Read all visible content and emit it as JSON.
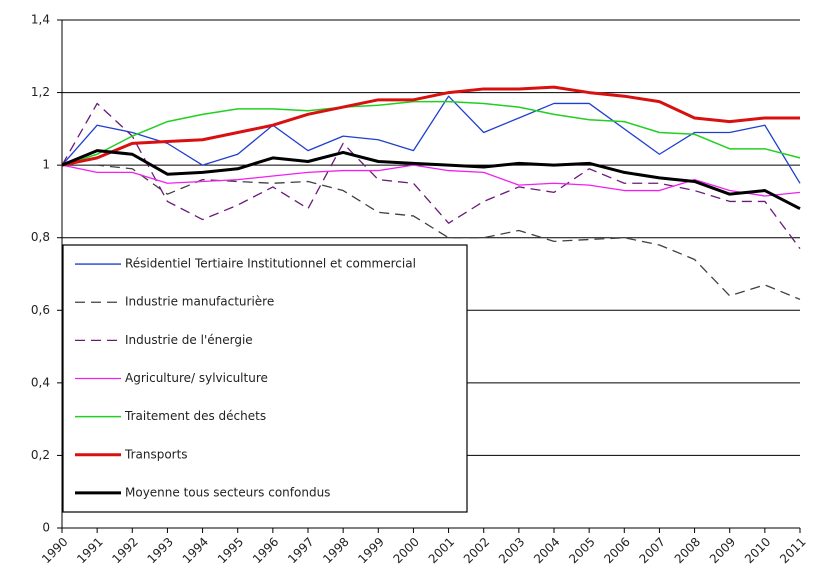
{
  "chart_data": {
    "type": "line",
    "categories": [
      "1990",
      "1991",
      "1992",
      "1993",
      "1994",
      "1995",
      "1996",
      "1997",
      "1998",
      "1999",
      "2000",
      "2001",
      "2002",
      "2003",
      "2004",
      "2005",
      "2006",
      "2007",
      "2008",
      "2009",
      "2010",
      "2011"
    ],
    "ylim": [
      0,
      1.4
    ],
    "yticks": [
      0,
      {
        "value": 0.2,
        "label": "0,2"
      },
      {
        "value": 0.4,
        "label": "0,4"
      },
      {
        "value": 0.6,
        "label": "0,6"
      },
      {
        "value": 0.8,
        "label": "0,8"
      },
      1,
      {
        "value": 1.2,
        "label": "1,2"
      },
      {
        "value": 1.4,
        "label": "1,4"
      }
    ],
    "grid": true,
    "legend": "bottom-left",
    "series": [
      {
        "name": "Résidentiel Tertiaire Institutionnel et commercial",
        "color": "#1f3fd0",
        "width": 1.3,
        "dash": "solid",
        "values": [
          1.0,
          1.11,
          1.09,
          1.06,
          1.0,
          1.03,
          1.11,
          1.04,
          1.08,
          1.07,
          1.04,
          1.19,
          1.09,
          1.13,
          1.17,
          1.17,
          1.1,
          1.03,
          1.09,
          1.09,
          1.11,
          0.95
        ]
      },
      {
        "name": "Industrie manufacturière",
        "color": "#404040",
        "width": 1.3,
        "dash": "dashed",
        "values": [
          1.0,
          1.0,
          0.99,
          0.92,
          0.96,
          0.955,
          0.95,
          0.955,
          0.93,
          0.87,
          0.86,
          0.8,
          0.8,
          0.82,
          0.79,
          0.795,
          0.8,
          0.78,
          0.74,
          0.64,
          0.67,
          0.63
        ]
      },
      {
        "name": "Industrie de l'énergie",
        "color": "#6a1a7a",
        "width": 1.3,
        "dash": "dashed",
        "values": [
          1.0,
          1.17,
          1.08,
          0.9,
          0.85,
          0.89,
          0.94,
          0.88,
          1.06,
          0.96,
          0.95,
          0.84,
          0.9,
          0.94,
          0.925,
          0.99,
          0.95,
          0.95,
          0.93,
          0.9,
          0.9,
          0.77
        ]
      },
      {
        "name": "Agriculture/ sylviculture",
        "color": "#f020f0",
        "width": 1.3,
        "dash": "solid",
        "values": [
          1.0,
          0.98,
          0.98,
          0.95,
          0.955,
          0.96,
          0.97,
          0.98,
          0.985,
          0.985,
          1.0,
          0.985,
          0.98,
          0.945,
          0.95,
          0.945,
          0.93,
          0.93,
          0.96,
          0.93,
          0.915,
          0.925
        ]
      },
      {
        "name": "Traitement des déchets",
        "color": "#20d020",
        "width": 1.5,
        "dash": "solid",
        "values": [
          1.0,
          1.03,
          1.08,
          1.12,
          1.14,
          1.155,
          1.155,
          1.15,
          1.16,
          1.165,
          1.175,
          1.175,
          1.17,
          1.16,
          1.14,
          1.125,
          1.12,
          1.09,
          1.085,
          1.045,
          1.045,
          1.02
        ]
      },
      {
        "name": "Transports",
        "color": "#d81010",
        "width": 3,
        "dash": "solid",
        "values": [
          1.0,
          1.02,
          1.06,
          1.065,
          1.07,
          1.09,
          1.11,
          1.14,
          1.16,
          1.18,
          1.18,
          1.2,
          1.21,
          1.21,
          1.215,
          1.2,
          1.19,
          1.175,
          1.13,
          1.12,
          1.13,
          1.13
        ]
      },
      {
        "name": "Moyenne tous secteurs confondus",
        "color": "#000000",
        "width": 3,
        "dash": "solid",
        "values": [
          1.0,
          1.04,
          1.03,
          0.975,
          0.98,
          0.99,
          1.02,
          1.01,
          1.035,
          1.01,
          1.005,
          1.0,
          0.995,
          1.005,
          1.0,
          1.005,
          0.98,
          0.965,
          0.955,
          0.92,
          0.93,
          0.88
        ]
      }
    ]
  }
}
